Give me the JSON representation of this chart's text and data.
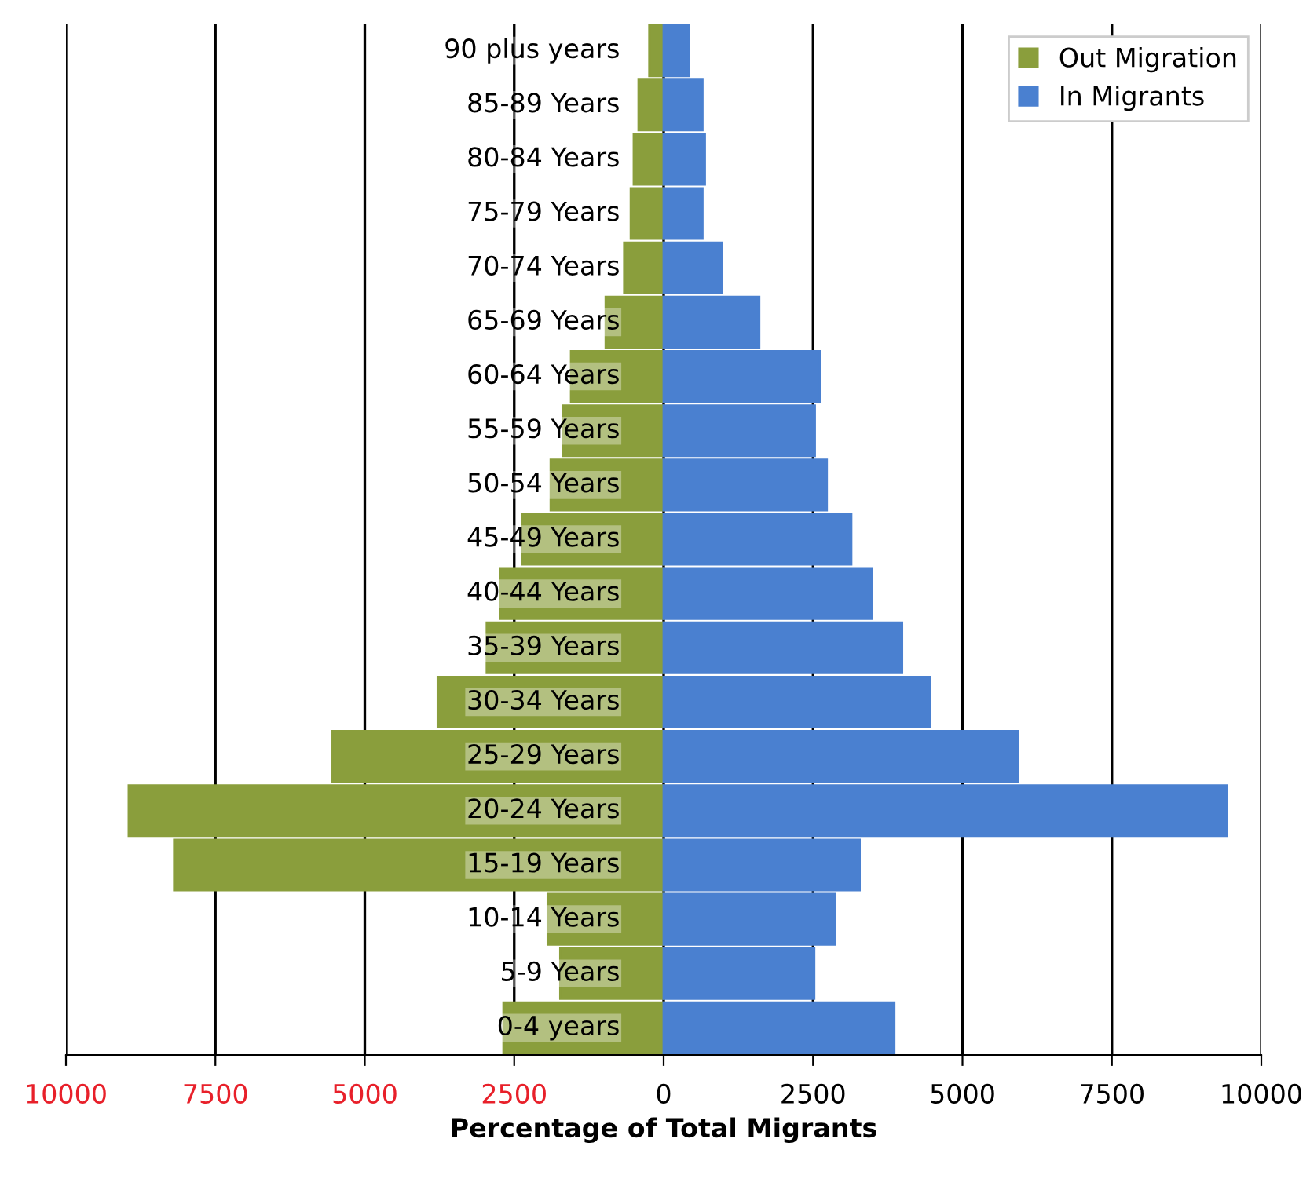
{
  "chart_data": {
    "type": "bar",
    "orientation": "horizontal",
    "stacked": true,
    "categories": [
      "90 plus years",
      "85-89 Years",
      "80-84 Years",
      "75-79 Years",
      "70-74 Years",
      "65-69 Years",
      "60-64 Years",
      "55-59 Years",
      "50-54 Years",
      "45-49 Years",
      "40-44 Years",
      "35-39 Years",
      "30-34 Years",
      "25-29 Years",
      "20-24 Years",
      "15-19 Years",
      "10-14 Years",
      "5-9 Years",
      "0-4 years"
    ],
    "series": [
      {
        "name": "Out Migration",
        "color": "#8a9e3c",
        "values": [
          -240,
          -420,
          -500,
          -550,
          -660,
          -970,
          -1550,
          -1680,
          -1890,
          -2360,
          -2730,
          -2960,
          -3780,
          -5540,
          -8950,
          -8190,
          -1940,
          -1730,
          -2680
        ]
      },
      {
        "name": "In Migrants",
        "color": "#4a80d0",
        "values": [
          420,
          650,
          690,
          650,
          970,
          1600,
          2620,
          2530,
          2730,
          3140,
          3490,
          3990,
          4460,
          5930,
          9420,
          3280,
          2860,
          2520,
          3860
        ]
      }
    ],
    "xlim": [
      -10000,
      10000
    ],
    "xticks": [
      {
        "value": -10000,
        "label": "10000"
      },
      {
        "value": -7500,
        "label": "7500"
      },
      {
        "value": -5000,
        "label": "5000"
      },
      {
        "value": -2500,
        "label": "2500"
      },
      0,
      2500,
      5000,
      7500,
      10000
    ],
    "xlabel": "Percentage of Total Migrants",
    "grid": "x",
    "legend": "top right"
  }
}
